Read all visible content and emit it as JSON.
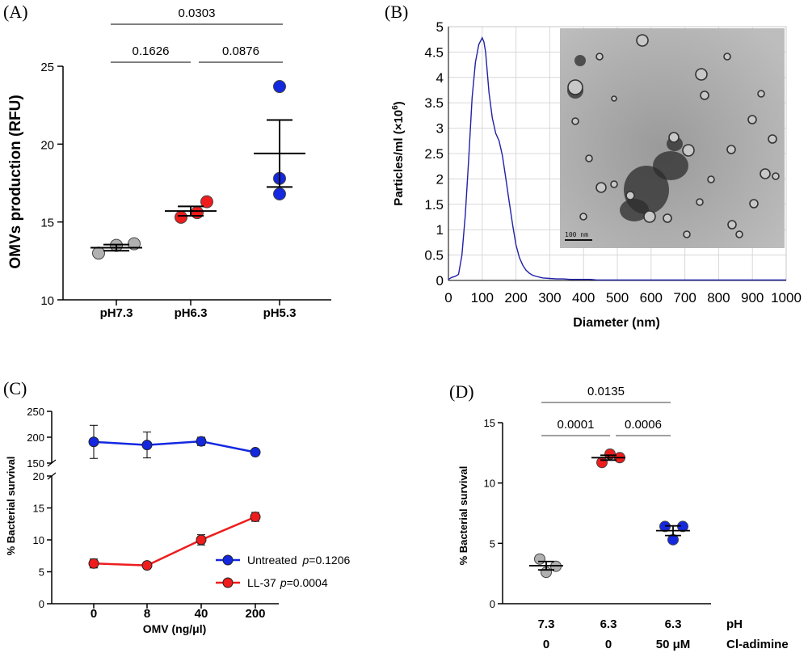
{
  "panels": {
    "a": "(A)",
    "b": "(B)",
    "c": "(C)",
    "d": "(D)"
  },
  "colors": {
    "grey": "#b0b0b0",
    "red": "#ee1c1c",
    "blue": "#1428e0",
    "nta_line": "#2020a8"
  },
  "chart_data": [
    {
      "id": "A",
      "type": "scatter",
      "ylabel": "OMVs production (RFU)",
      "ylim": [
        10,
        25
      ],
      "yticks": [
        10,
        15,
        20,
        25
      ],
      "categories": [
        "pH7.3",
        "pH6.3",
        "pH5.3"
      ],
      "point_colors": [
        "grey",
        "red",
        "blue"
      ],
      "points": [
        [
          13.0,
          13.5,
          13.6
        ],
        [
          15.3,
          15.6,
          16.3
        ],
        [
          16.8,
          17.8,
          23.7
        ]
      ],
      "mean": [
        13.35,
        15.7,
        19.4
      ],
      "sem": [
        0.2,
        0.3,
        2.15
      ],
      "significance": [
        {
          "from": 1,
          "to": 2,
          "label": "0.1626"
        },
        {
          "from": 2,
          "to": 3,
          "label": "0.0876"
        },
        {
          "from": 1,
          "to": 3,
          "label": "0.0303"
        }
      ]
    },
    {
      "id": "B",
      "type": "line",
      "xlabel": "Diameter (nm)",
      "ylabel_main": "Particles/ml (×10",
      "ylabel_sup": "6",
      "ylabel_end": ")",
      "xlim": [
        0,
        1000
      ],
      "ylim": [
        0,
        5
      ],
      "xticks": [
        0,
        100,
        200,
        300,
        400,
        500,
        600,
        700,
        800,
        900,
        1000
      ],
      "yticks": [
        0,
        0.5,
        1,
        1.5,
        2,
        2.5,
        3,
        3.5,
        4,
        4.5,
        5
      ],
      "grid": true,
      "x": [
        0,
        10,
        20,
        30,
        40,
        50,
        60,
        70,
        80,
        90,
        100,
        105,
        110,
        115,
        120,
        130,
        140,
        150,
        160,
        170,
        180,
        190,
        200,
        210,
        220,
        230,
        240,
        250,
        260,
        280,
        300,
        320,
        340,
        360,
        380,
        400,
        420,
        440,
        460,
        500,
        600,
        700,
        800,
        900,
        1000
      ],
      "y": [
        0.02,
        0.06,
        0.08,
        0.12,
        0.5,
        1.3,
        2.4,
        3.6,
        4.3,
        4.65,
        4.78,
        4.7,
        4.5,
        4.1,
        3.7,
        3.2,
        2.9,
        2.75,
        2.45,
        2.0,
        1.55,
        1.1,
        0.7,
        0.45,
        0.3,
        0.2,
        0.14,
        0.1,
        0.08,
        0.05,
        0.04,
        0.03,
        0.03,
        0.02,
        0.02,
        0.02,
        0.02,
        0.01,
        0.01,
        0.01,
        0.01,
        0.01,
        0.01,
        0.01,
        0.01
      ],
      "inset_scale_label": "100 nm"
    },
    {
      "id": "C",
      "type": "line",
      "xlabel": "OMV (ng/μl)",
      "ylabel": "% Bacterial survival",
      "categories": [
        "0",
        "8",
        "40",
        "200"
      ],
      "axis_break": {
        "lower": [
          0,
          20
        ],
        "upper": [
          150,
          250
        ]
      },
      "yticks_lower": [
        0,
        5,
        10,
        15,
        20
      ],
      "yticks_upper": [
        150,
        200,
        250
      ],
      "series": [
        {
          "name": "Untreated",
          "color": "blue",
          "values": [
            191,
            185,
            192,
            171
          ],
          "err": [
            32,
            25,
            8,
            4
          ],
          "p_label": "p",
          "p_value": "=0.1206"
        },
        {
          "name": "LL-37",
          "color": "red",
          "values": [
            6.3,
            6.0,
            10.0,
            13.6
          ],
          "err": [
            0.7,
            0.5,
            0.8,
            0.7
          ],
          "p_label": "p",
          "p_value": "=0.0004"
        }
      ]
    },
    {
      "id": "D",
      "type": "scatter",
      "ylabel": "% Bacterial survival",
      "ylim": [
        0,
        15
      ],
      "yticks": [
        0,
        5,
        10,
        15
      ],
      "row1_label": "pH",
      "row2_label": "Cl-adimine",
      "row1_values": [
        "7.3",
        "6.3",
        "6.3"
      ],
      "row2_values": [
        "0",
        "0",
        "50 μM"
      ],
      "point_colors": [
        "grey",
        "red",
        "blue"
      ],
      "points": [
        [
          2.6,
          3.1,
          3.7
        ],
        [
          11.7,
          12.1,
          12.4
        ],
        [
          5.3,
          6.4,
          6.4
        ]
      ],
      "mean": [
        3.15,
        12.1,
        6.05
      ],
      "sem": [
        0.35,
        0.2,
        0.4
      ],
      "significance": [
        {
          "from": 1,
          "to": 2,
          "label": "0.0001"
        },
        {
          "from": 2,
          "to": 3,
          "label": "0.0006"
        },
        {
          "from": 1,
          "to": 3,
          "label": "0.0135"
        }
      ]
    }
  ]
}
